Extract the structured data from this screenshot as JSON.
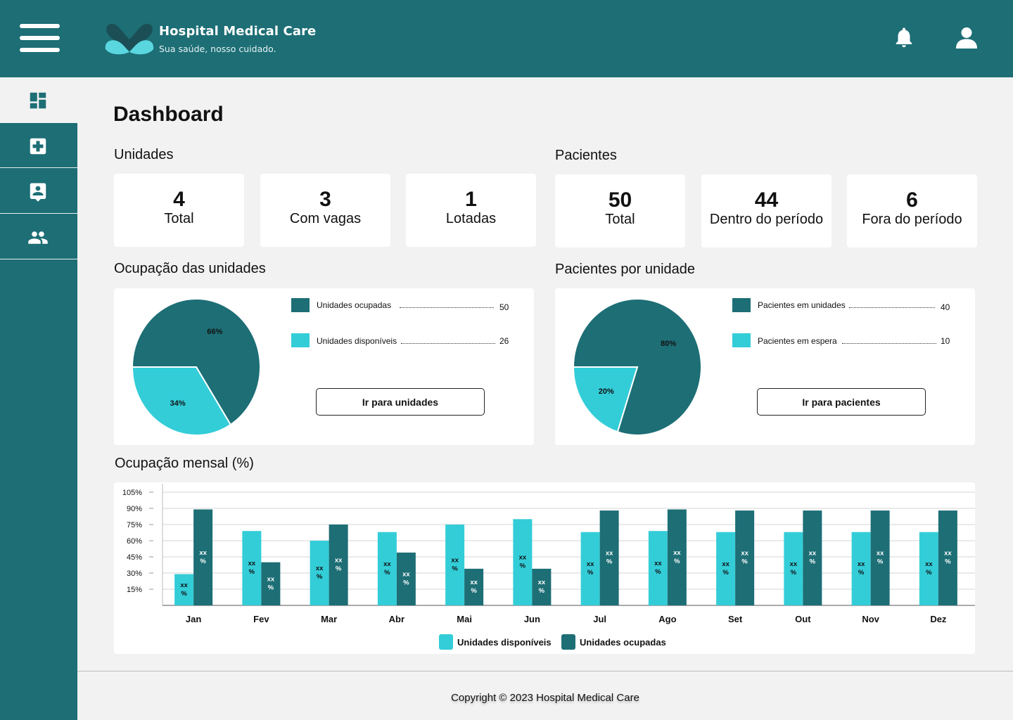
{
  "app": {
    "name": "Hospital Medical Care",
    "tagline": "Sua saúde, nosso cuidado.",
    "icons": {
      "menu": "hamburger-icon",
      "notifications": "bell-icon",
      "user": "user-icon"
    },
    "colors": {
      "primary": "#1d6e75",
      "accent": "#33cdd8",
      "background": "#f2f2f2"
    }
  },
  "sidebar": {
    "items": [
      {
        "icon": "dashboard-icon",
        "active": true
      },
      {
        "icon": "hospital-cross-icon",
        "active": false
      },
      {
        "icon": "patient-card-icon",
        "active": false
      },
      {
        "icon": "people-icon",
        "active": false
      }
    ]
  },
  "page": {
    "title": "Dashboard"
  },
  "unidades": {
    "label": "Unidades",
    "cards": [
      {
        "value": "4",
        "label": "Total"
      },
      {
        "value": "3",
        "label": "Com vagas"
      },
      {
        "value": "1",
        "label": "Lotadas"
      }
    ]
  },
  "pacientes": {
    "label": "Pacientes",
    "cards": [
      {
        "value": "50",
        "label": "Total"
      },
      {
        "value": "44",
        "label": "Dentro do período"
      },
      {
        "value": "6",
        "label": "Fora do período"
      }
    ]
  },
  "ocupacao_unidades": {
    "label": "Ocupação das unidades",
    "legend": [
      {
        "label": "Unidades ocupadas",
        "value": "50"
      },
      {
        "label": "Unidades disponíveis",
        "value": "26"
      }
    ],
    "button": "Ir para unidades"
  },
  "pacientes_por_unidade": {
    "label": "Pacientes por unidade",
    "legend": [
      {
        "label": "Pacientes em unidades",
        "value": "40"
      },
      {
        "label": "Pacientes em espera",
        "value": "10"
      }
    ],
    "button": "Ir para pacientes"
  },
  "mensal": {
    "label": "Ocupação mensal (%)"
  },
  "chart_data": [
    {
      "type": "pie",
      "labels": [
        "Unidades ocupadas",
        "Unidades disponíveis"
      ],
      "values": [
        66,
        34
      ],
      "slice_labels": [
        "66%",
        "34%"
      ],
      "colors": [
        "#1d6e75",
        "#33cdd8"
      ]
    },
    {
      "type": "pie",
      "labels": [
        "Pacientes em unidades",
        "Pacientes em espera"
      ],
      "values": [
        80,
        20
      ],
      "slice_labels": [
        "80%",
        "20%"
      ],
      "colors": [
        "#1d6e75",
        "#33cdd8"
      ]
    },
    {
      "type": "bar",
      "categories": [
        "Jan",
        "Fev",
        "Mar",
        "Abr",
        "Mai",
        "Jun",
        "Jul",
        "Ago",
        "Set",
        "Out",
        "Nov",
        "Dez"
      ],
      "yticks": [
        "15%",
        "30%",
        "45%",
        "60%",
        "75%",
        "90%",
        "105%"
      ],
      "ylim": [
        0,
        105
      ],
      "bar_label": "xx %",
      "series": [
        {
          "name": "Unidades disponíveis",
          "color": "#33cdd8",
          "values": [
            29,
            69,
            60,
            68,
            75,
            80,
            68,
            69,
            68,
            68,
            68,
            68
          ]
        },
        {
          "name": "Unidades ocupadas",
          "color": "#1d6e75",
          "values": [
            89,
            40,
            75,
            49,
            34,
            34,
            88,
            89,
            88,
            88,
            88,
            88
          ]
        }
      ],
      "legend_position": "bottom-center"
    }
  ],
  "footer": {
    "text": "Copyright © 2023 Hospital Medical Care"
  }
}
